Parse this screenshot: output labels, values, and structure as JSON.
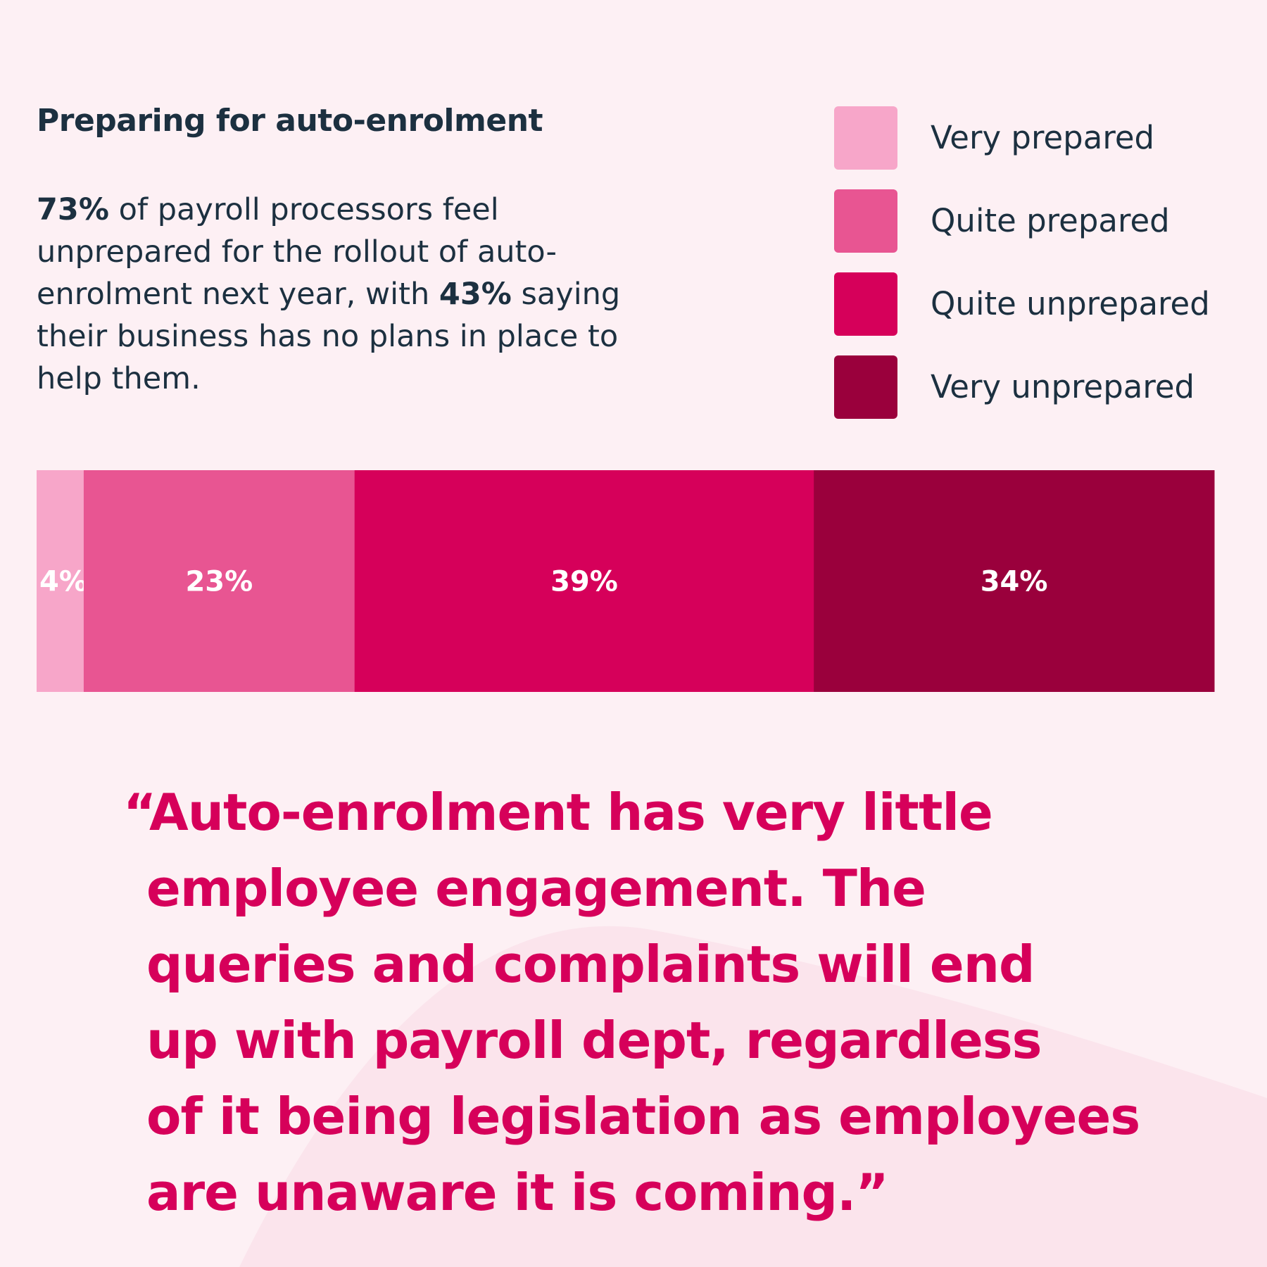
{
  "header": {
    "title": "Preparing for auto-enrolment"
  },
  "intro": {
    "stat_1": "73%",
    "text_1": " of payroll processors feel unprepared for the rollout of auto-enrolment next year, with ",
    "stat_2": "43%",
    "text_2": " saying their business has no plans in place to help them."
  },
  "colors": {
    "background": "#fdf0f4",
    "very_prepared": "#f7a6c9",
    "quite_prepared": "#e85592",
    "quite_unprepared": "#d6005a",
    "very_unprepared": "#9a003c",
    "text_dark": "#1c3040",
    "quote": "#d6005a"
  },
  "chart_data": {
    "type": "bar",
    "orientation": "horizontal-stacked",
    "title": "Preparing for auto-enrolment",
    "categories": [
      "Very prepared",
      "Quite prepared",
      "Quite unprepared",
      "Very unprepared"
    ],
    "values": [
      4,
      23,
      39,
      34
    ],
    "labels": [
      "4%",
      "23%",
      "39%",
      "34%"
    ],
    "unit": "%",
    "legend_position": "top-right",
    "legend": [
      "Very prepared",
      "Quite prepared",
      "Quite unprepared",
      "Very unprepared"
    ],
    "grid": false
  },
  "quote": {
    "lines": [
      "“Auto-enrolment has very little",
      "employee engagement. The",
      "queries and complaints will end",
      "up with payroll dept, regardless",
      "of it being legislation as employees",
      "are unaware it is coming.”"
    ]
  }
}
